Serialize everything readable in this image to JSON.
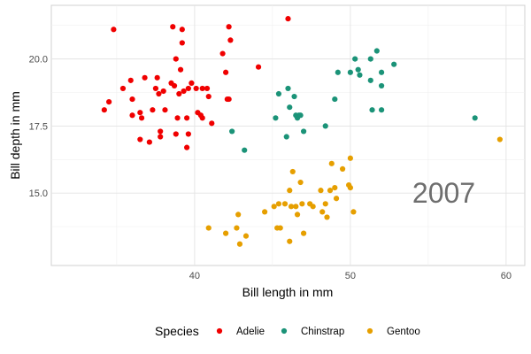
{
  "chart_data": {
    "type": "scatter",
    "xlabel": "Bill length in mm",
    "ylabel": "Bill depth in mm",
    "xlim": [
      30.8,
      61.2
    ],
    "ylim": [
      12.3,
      22.0
    ],
    "x_ticks": [
      40,
      50,
      60
    ],
    "y_ticks": [
      15.0,
      17.5,
      20.0
    ],
    "y_tick_labels": [
      "15.0",
      "17.5",
      "20.0"
    ],
    "grid": true,
    "annotation": "2007",
    "annotation_position": {
      "x": 56.0,
      "y": 15.0
    },
    "legend": {
      "title": "Species",
      "position": "bottom"
    },
    "series": [
      {
        "name": "Adelie",
        "color": "#f00000",
        "points": [
          [
            34.2,
            18.1
          ],
          [
            34.5,
            18.4
          ],
          [
            34.8,
            21.1
          ],
          [
            35.4,
            18.9
          ],
          [
            35.9,
            19.2
          ],
          [
            36.0,
            18.5
          ],
          [
            36.0,
            17.9
          ],
          [
            36.5,
            18.0
          ],
          [
            36.5,
            17.0
          ],
          [
            36.6,
            17.8
          ],
          [
            36.8,
            19.3
          ],
          [
            37.1,
            16.9
          ],
          [
            37.3,
            18.1
          ],
          [
            37.5,
            18.9
          ],
          [
            37.6,
            19.3
          ],
          [
            37.7,
            18.7
          ],
          [
            37.8,
            17.3
          ],
          [
            37.8,
            17.1
          ],
          [
            38.0,
            18.8
          ],
          [
            38.1,
            18.1
          ],
          [
            38.5,
            19.1
          ],
          [
            38.6,
            21.2
          ],
          [
            38.7,
            19.0
          ],
          [
            38.8,
            17.2
          ],
          [
            38.8,
            20.0
          ],
          [
            38.9,
            17.8
          ],
          [
            39.0,
            18.7
          ],
          [
            39.1,
            19.6
          ],
          [
            39.2,
            21.1
          ],
          [
            39.2,
            20.6
          ],
          [
            39.3,
            18.8
          ],
          [
            39.5,
            17.8
          ],
          [
            39.5,
            16.7
          ],
          [
            39.6,
            17.2
          ],
          [
            39.6,
            18.9
          ],
          [
            39.8,
            19.1
          ],
          [
            40.1,
            18.9
          ],
          [
            40.2,
            18.0
          ],
          [
            40.4,
            17.9
          ],
          [
            40.5,
            18.9
          ],
          [
            40.5,
            17.8
          ],
          [
            40.8,
            18.9
          ],
          [
            40.9,
            18.6
          ],
          [
            41.1,
            17.6
          ],
          [
            41.8,
            20.2
          ],
          [
            42.0,
            19.5
          ],
          [
            42.1,
            18.5
          ],
          [
            42.2,
            21.2
          ],
          [
            42.3,
            20.7
          ],
          [
            42.2,
            18.5
          ],
          [
            44.1,
            19.7
          ],
          [
            46.0,
            21.5
          ]
        ]
      },
      {
        "name": "Chinstrap",
        "color": "#1b9378",
        "points": [
          [
            42.4,
            17.3
          ],
          [
            43.2,
            16.6
          ],
          [
            45.2,
            17.8
          ],
          [
            45.4,
            18.7
          ],
          [
            45.9,
            17.1
          ],
          [
            46.1,
            18.2
          ],
          [
            46.0,
            18.9
          ],
          [
            46.5,
            17.9
          ],
          [
            46.4,
            18.6
          ],
          [
            46.6,
            17.8
          ],
          [
            46.7,
            17.9
          ],
          [
            46.8,
            17.9
          ],
          [
            47.0,
            17.3
          ],
          [
            48.4,
            17.5
          ],
          [
            49.0,
            18.5
          ],
          [
            49.2,
            19.5
          ],
          [
            50.0,
            19.5
          ],
          [
            50.3,
            20.0
          ],
          [
            50.5,
            19.6
          ],
          [
            50.6,
            19.4
          ],
          [
            51.3,
            20.0
          ],
          [
            51.3,
            19.2
          ],
          [
            51.4,
            18.1
          ],
          [
            51.7,
            20.3
          ],
          [
            52.0,
            19.0
          ],
          [
            52.0,
            18.1
          ],
          [
            52.0,
            19.5
          ],
          [
            52.8,
            19.8
          ],
          [
            58.0,
            17.8
          ]
        ]
      },
      {
        "name": "Gentoo",
        "color": "#e69f00",
        "points": [
          [
            40.9,
            13.7
          ],
          [
            42.0,
            13.5
          ],
          [
            42.7,
            13.7
          ],
          [
            42.8,
            14.2
          ],
          [
            42.9,
            13.1
          ],
          [
            43.3,
            13.4
          ],
          [
            44.5,
            14.3
          ],
          [
            45.1,
            14.5
          ],
          [
            45.3,
            13.7
          ],
          [
            45.4,
            14.6
          ],
          [
            45.5,
            13.7
          ],
          [
            45.8,
            14.6
          ],
          [
            46.1,
            13.2
          ],
          [
            46.2,
            14.5
          ],
          [
            46.1,
            15.1
          ],
          [
            46.3,
            15.8
          ],
          [
            46.5,
            14.5
          ],
          [
            46.6,
            14.2
          ],
          [
            46.8,
            15.4
          ],
          [
            46.9,
            14.6
          ],
          [
            47.0,
            13.5
          ],
          [
            47.4,
            14.6
          ],
          [
            47.6,
            14.5
          ],
          [
            48.1,
            15.1
          ],
          [
            48.2,
            14.3
          ],
          [
            48.4,
            14.6
          ],
          [
            48.5,
            14.1
          ],
          [
            48.7,
            15.1
          ],
          [
            48.8,
            16.1
          ],
          [
            49.1,
            14.8
          ],
          [
            49.0,
            15.2
          ],
          [
            49.5,
            15.9
          ],
          [
            49.9,
            15.3
          ],
          [
            50.0,
            16.3
          ],
          [
            50.0,
            15.2
          ],
          [
            50.2,
            14.3
          ],
          [
            59.6,
            17.0
          ]
        ]
      }
    ]
  }
}
